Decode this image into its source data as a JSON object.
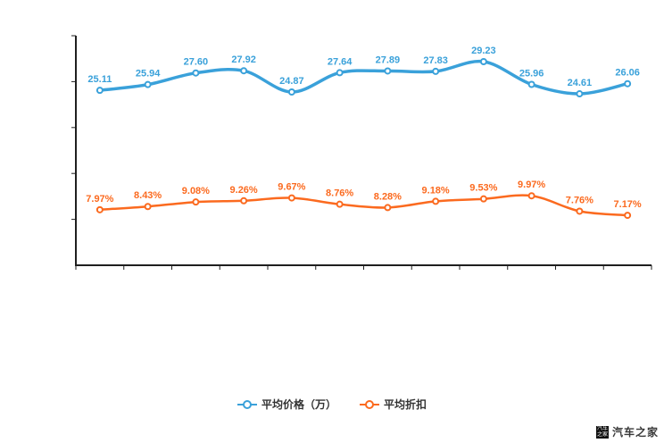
{
  "chart_data": {
    "type": "line",
    "title": "",
    "xlabel": "",
    "ylabel": "",
    "x_labels": [],
    "ylim": [
      0,
      31
    ],
    "grid": false,
    "legend_position": "bottom",
    "series": [
      {
        "name": "平均价格（万）",
        "color": "#3aa1da",
        "values": [
          25.11,
          25.94,
          27.6,
          27.92,
          24.87,
          27.64,
          27.89,
          27.83,
          29.23,
          25.96,
          24.61,
          26.06
        ],
        "labels": [
          "25.11",
          "25.94",
          "27.60",
          "27.92",
          "24.87",
          "27.64",
          "27.89",
          "27.83",
          "29.23",
          "25.96",
          "24.61",
          "26.06"
        ]
      },
      {
        "name": "平均折扣",
        "color": "#fb6a1f",
        "values": [
          7.97,
          8.43,
          9.08,
          9.26,
          9.67,
          8.76,
          8.28,
          9.18,
          9.53,
          9.97,
          7.76,
          7.17
        ],
        "labels": [
          "7.97%",
          "8.43%",
          "9.08%",
          "9.26%",
          "9.67%",
          "8.76%",
          "8.28%",
          "9.18%",
          "9.53%",
          "9.97%",
          "7.76%",
          "7.17%"
        ]
      }
    ]
  },
  "legend": {
    "items": [
      {
        "label": "平均价格（万）",
        "color": "#3aa1da"
      },
      {
        "label": "平均折扣",
        "color": "#fb6a1f"
      }
    ]
  },
  "watermark": {
    "text": "汽车之家",
    "logo_glyph": "汽车之家"
  },
  "colors": {
    "price_line": "#3aa1da",
    "discount_line": "#fb6a1f",
    "axis": "#1f1f1f"
  }
}
